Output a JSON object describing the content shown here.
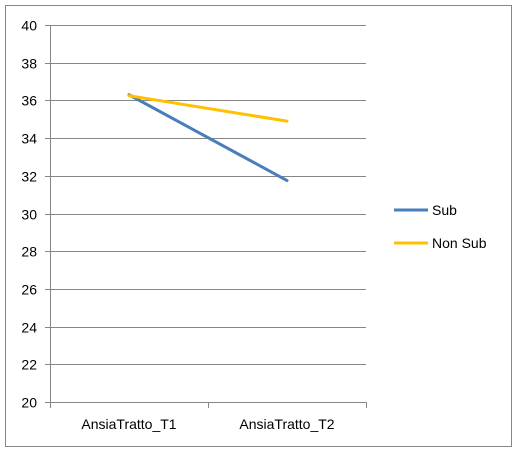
{
  "chart_data": {
    "type": "line",
    "title": "",
    "xlabel": "",
    "ylabel": "",
    "categories": [
      "AnsiaTratto_T1",
      "AnsiaTratto_T2"
    ],
    "series": [
      {
        "name": "Sub",
        "values": [
          36.3,
          31.75
        ],
        "color": "#4a7ebb"
      },
      {
        "name": "Non Sub",
        "values": [
          36.25,
          34.9
        ],
        "color": "#ffc000"
      }
    ],
    "ylim": [
      20,
      40
    ],
    "yticks": [
      "20",
      "22",
      "24",
      "26",
      "28",
      "30",
      "32",
      "34",
      "36",
      "38",
      "40"
    ],
    "grid": true,
    "legend_position": "right",
    "colors": {
      "gridline": "#868686",
      "axis": "#868686",
      "border": "#868686"
    }
  }
}
